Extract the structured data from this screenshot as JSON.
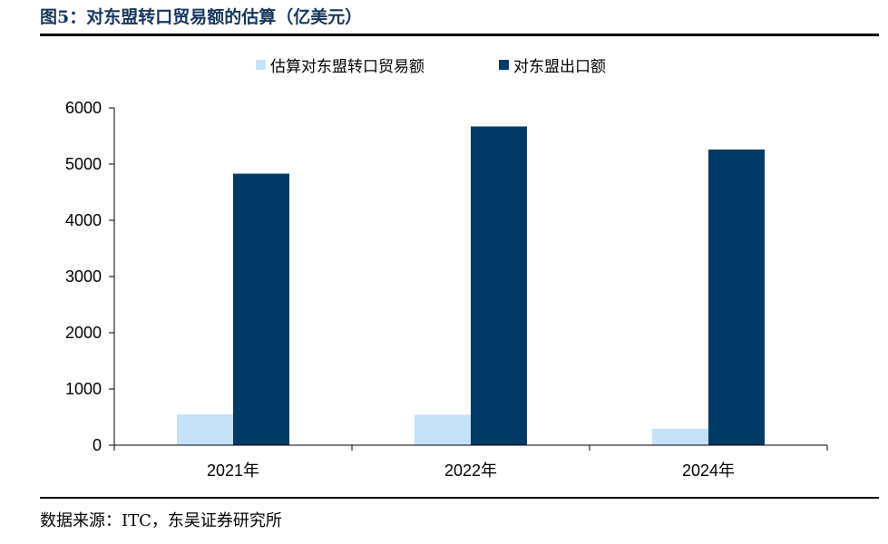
{
  "figure": {
    "title": "图5：对东盟转口贸易额的估算（亿美元）",
    "source": "数据来源：ITC，东吴证券研究所"
  },
  "chart_data": {
    "type": "bar",
    "categories": [
      "2021年",
      "2022年",
      "2024年"
    ],
    "series": [
      {
        "name": "估算对东盟转口贸易额",
        "color": "#c6e2f8",
        "values": [
          550,
          540,
          290
        ]
      },
      {
        "name": "对东盟出口额",
        "color": "#003a66",
        "values": [
          4830,
          5670,
          5260
        ]
      }
    ],
    "ylim": [
      0,
      6000
    ],
    "yticks": [
      0,
      1000,
      2000,
      3000,
      4000,
      5000,
      6000
    ],
    "legend_position": "top",
    "grid": false
  }
}
